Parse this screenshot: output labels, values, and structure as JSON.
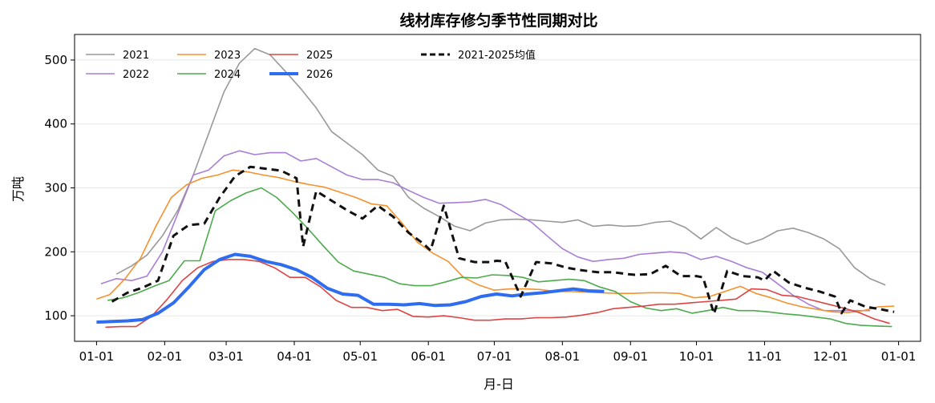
{
  "chart_data": {
    "type": "line",
    "title": "线材库存修匀季节性同期对比",
    "xlabel": "月-日",
    "ylabel": "万吨",
    "x_axis": "day-of-year",
    "xlim": [
      -10,
      375
    ],
    "ylim": [
      60,
      540
    ],
    "x_ticks": [
      {
        "label": "01-01",
        "day": 0
      },
      {
        "label": "02-01",
        "day": 31
      },
      {
        "label": "03-01",
        "day": 59
      },
      {
        "label": "04-01",
        "day": 90
      },
      {
        "label": "05-01",
        "day": 120
      },
      {
        "label": "06-01",
        "day": 151
      },
      {
        "label": "07-01",
        "day": 181
      },
      {
        "label": "08-01",
        "day": 212
      },
      {
        "label": "09-01",
        "day": 243
      },
      {
        "label": "10-01",
        "day": 273
      },
      {
        "label": "11-01",
        "day": 304
      },
      {
        "label": "12-01",
        "day": 334
      },
      {
        "label": "01-01",
        "day": 365
      }
    ],
    "y_ticks": [
      100,
      200,
      300,
      400,
      500
    ],
    "grid": "y-only",
    "legend_position": "top-left",
    "series": [
      {
        "name": "2021",
        "color": "#999999",
        "width": 1.6,
        "dash": "",
        "x": [
          9,
          16,
          23,
          30,
          37,
          44,
          51,
          58,
          65,
          72,
          79,
          86,
          93,
          100,
          107,
          114,
          121,
          128,
          135,
          142,
          149,
          156,
          163,
          170,
          177,
          184,
          191,
          198,
          205,
          212,
          219,
          226,
          233,
          240,
          247,
          254,
          261,
          268,
          275,
          282,
          289,
          296,
          303,
          310,
          317,
          324,
          331,
          338,
          345,
          352,
          359
        ],
        "y": [
          165,
          178,
          195,
          225,
          265,
          320,
          385,
          450,
          495,
          518,
          508,
          482,
          455,
          425,
          388,
          370,
          352,
          328,
          318,
          285,
          268,
          255,
          240,
          233,
          245,
          250,
          251,
          250,
          248,
          246,
          250,
          240,
          242,
          240,
          241,
          246,
          248,
          238,
          220,
          238,
          222,
          212,
          220,
          233,
          237,
          230,
          220,
          205,
          175,
          158,
          148
        ]
      },
      {
        "name": "2022",
        "color": "#a87fd4",
        "width": 1.6,
        "dash": "",
        "x": [
          2,
          9,
          16,
          23,
          30,
          37,
          44,
          51,
          58,
          65,
          72,
          79,
          86,
          93,
          100,
          107,
          114,
          121,
          128,
          135,
          142,
          149,
          156,
          163,
          170,
          177,
          184,
          191,
          198,
          205,
          212,
          219,
          226,
          233,
          240,
          247,
          254,
          261,
          268,
          275,
          282,
          289,
          296,
          303,
          310,
          317,
          324,
          331,
          338,
          345,
          352
        ],
        "y": [
          150,
          158,
          155,
          162,
          200,
          260,
          320,
          328,
          350,
          358,
          352,
          355,
          355,
          342,
          346,
          333,
          320,
          313,
          313,
          308,
          296,
          285,
          276,
          277,
          278,
          282,
          274,
          260,
          246,
          225,
          205,
          192,
          185,
          188,
          190,
          196,
          198,
          200,
          198,
          188,
          193,
          185,
          175,
          168,
          150,
          132,
          118,
          108,
          108,
          108,
          108
        ]
      },
      {
        "name": "2023",
        "color": "#f5922e",
        "width": 1.6,
        "dash": "",
        "x": [
          0,
          6,
          13,
          20,
          27,
          34,
          41,
          48,
          55,
          62,
          69,
          76,
          83,
          90,
          97,
          104,
          111,
          118,
          125,
          132,
          139,
          146,
          153,
          160,
          167,
          174,
          181,
          188,
          195,
          202,
          209,
          216,
          223,
          230,
          237,
          244,
          251,
          258,
          265,
          272,
          279,
          286,
          293,
          300,
          307,
          314,
          321,
          328,
          335,
          342,
          349,
          356,
          363
        ],
        "y": [
          126,
          133,
          158,
          190,
          240,
          285,
          305,
          315,
          320,
          328,
          325,
          320,
          316,
          310,
          305,
          301,
          293,
          285,
          275,
          272,
          245,
          215,
          198,
          185,
          160,
          148,
          140,
          142,
          142,
          141,
          138,
          138,
          137,
          136,
          135,
          135,
          136,
          136,
          135,
          128,
          130,
          138,
          146,
          135,
          128,
          120,
          114,
          110,
          106,
          105,
          108,
          114,
          115
        ]
      },
      {
        "name": "2024",
        "color": "#4daa4d",
        "width": 1.6,
        "dash": "",
        "x": [
          5,
          12,
          19,
          26,
          33,
          40,
          47,
          54,
          61,
          68,
          75,
          82,
          89,
          96,
          103,
          110,
          117,
          124,
          131,
          138,
          145,
          152,
          159,
          166,
          173,
          180,
          187,
          194,
          201,
          208,
          215,
          222,
          229,
          236,
          243,
          250,
          257,
          264,
          271,
          278,
          285,
          292,
          299,
          306,
          313,
          320,
          327,
          334,
          341,
          348,
          355,
          362
        ],
        "y": [
          124,
          128,
          136,
          146,
          155,
          186,
          186,
          264,
          280,
          292,
          300,
          285,
          262,
          237,
          210,
          184,
          170,
          165,
          160,
          150,
          147,
          147,
          153,
          160,
          159,
          164,
          163,
          160,
          153,
          155,
          157,
          155,
          145,
          138,
          122,
          112,
          108,
          111,
          104,
          108,
          113,
          108,
          108,
          106,
          103,
          101,
          98,
          95,
          88,
          85,
          84,
          83
        ]
      },
      {
        "name": "2025",
        "color": "#dd4444",
        "width": 1.6,
        "dash": "",
        "x": [
          4,
          11,
          18,
          25,
          32,
          39,
          46,
          53,
          60,
          67,
          74,
          81,
          88,
          95,
          102,
          109,
          116,
          123,
          130,
          137,
          144,
          151,
          158,
          165,
          172,
          179,
          186,
          193,
          200,
          207,
          214,
          221,
          228,
          235,
          242,
          249,
          256,
          263,
          270,
          277,
          284,
          291,
          298,
          305,
          312,
          319,
          326,
          333,
          340,
          347,
          354,
          361
        ],
        "y": [
          82,
          83,
          83,
          99,
          125,
          155,
          175,
          185,
          188,
          188,
          185,
          175,
          160,
          160,
          145,
          124,
          113,
          113,
          108,
          110,
          99,
          98,
          100,
          97,
          93,
          93,
          95,
          95,
          97,
          97,
          98,
          101,
          105,
          111,
          113,
          115,
          118,
          118,
          120,
          122,
          124,
          126,
          142,
          141,
          132,
          130,
          124,
          118,
          112,
          105,
          95,
          88
        ]
      },
      {
        "name": "2026",
        "color": "#2f6df0",
        "width": 4,
        "dash": "",
        "x": [
          0,
          7,
          14,
          21,
          28,
          35,
          42,
          49,
          56,
          63,
          70,
          77,
          84,
          91,
          98,
          105,
          112,
          119,
          126,
          133,
          140,
          147,
          154,
          161,
          168,
          175,
          182,
          189,
          196,
          203,
          210,
          217,
          224,
          231
        ],
        "y": [
          90,
          91,
          92,
          94,
          104,
          120,
          145,
          172,
          188,
          196,
          193,
          185,
          180,
          172,
          160,
          143,
          134,
          132,
          118,
          118,
          117,
          119,
          116,
          117,
          122,
          130,
          134,
          131,
          134,
          136,
          139,
          142,
          139,
          138
        ]
      },
      {
        "name": "2021-2025均值",
        "color": "#111111",
        "width": 3,
        "dash": "9,6",
        "x": [
          7,
          14,
          21,
          28,
          35,
          42,
          49,
          56,
          63,
          70,
          77,
          84,
          91,
          94,
          100,
          107,
          114,
          121,
          128,
          135,
          142,
          149,
          152,
          158,
          165,
          172,
          179,
          182,
          186,
          193,
          200,
          207,
          214,
          221,
          228,
          235,
          242,
          245,
          252,
          259,
          266,
          273,
          276,
          281,
          287,
          294,
          301,
          304,
          308,
          315,
          322,
          329,
          336,
          339,
          343,
          350,
          357,
          363
        ],
        "y": [
          122,
          136,
          144,
          155,
          225,
          242,
          244,
          285,
          318,
          333,
          330,
          327,
          315,
          208,
          295,
          280,
          265,
          252,
          272,
          255,
          230,
          212,
          202,
          272,
          190,
          184,
          184,
          186,
          185,
          130,
          184,
          182,
          175,
          171,
          168,
          168,
          165,
          164,
          165,
          178,
          162,
          162,
          160,
          103,
          170,
          162,
          160,
          155,
          170,
          152,
          144,
          138,
          130,
          104,
          124,
          114,
          110,
          106
        ]
      }
    ]
  }
}
